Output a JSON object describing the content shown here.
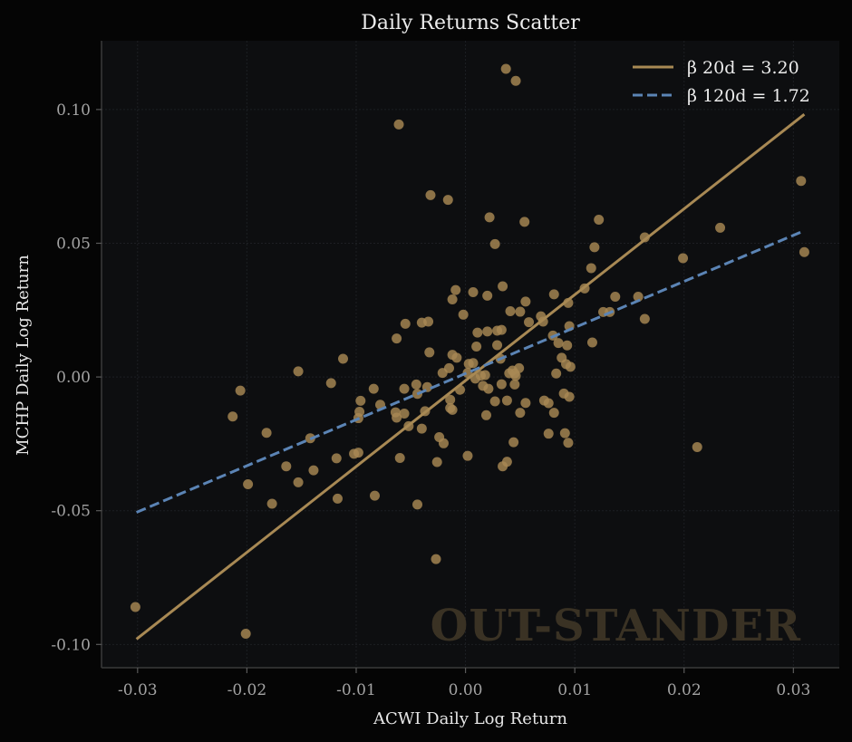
{
  "chart_data": {
    "type": "scatter",
    "title": "Daily Returns Scatter",
    "xlabel": "ACWI Daily Log Return",
    "ylabel": "MCHP Daily Log Return",
    "xlim": [
      -0.0333,
      0.0342
    ],
    "ylim": [
      -0.1087,
      0.1257
    ],
    "xticks": [
      -0.03,
      -0.02,
      -0.01,
      0.0,
      0.01,
      0.02,
      0.03
    ],
    "xtick_labels": [
      "-0.03",
      "-0.02",
      "-0.01",
      "0.00",
      "0.01",
      "0.02",
      "0.03"
    ],
    "yticks": [
      -0.1,
      -0.05,
      0.0,
      0.05,
      0.1
    ],
    "ytick_labels": [
      "-0.10",
      "-0.05",
      "0.00",
      "0.05",
      "0.10"
    ],
    "grid": true,
    "legend_position": "top-right",
    "watermark": "OUT-STANDER",
    "colors": {
      "background": "#050505",
      "plot_background": "#0d0e10",
      "points": "#a88954",
      "fit_20d": "#a88954",
      "fit_120d": "#5b84b5",
      "watermark": "#3a3224"
    },
    "series": [
      {
        "name": "points",
        "kind": "scatter",
        "points": [
          [
            0.0037,
            0.1152
          ],
          [
            0.0046,
            0.1107
          ],
          [
            -0.0061,
            0.0944
          ],
          [
            -0.0032,
            0.068
          ],
          [
            -0.0016,
            0.0662
          ],
          [
            0.0022,
            0.0597
          ],
          [
            0.0054,
            0.058
          ],
          [
            0.0122,
            0.0588
          ],
          [
            0.0027,
            0.0497
          ],
          [
            0.0118,
            0.0485
          ],
          [
            0.0164,
            0.0522
          ],
          [
            0.0233,
            0.0558
          ],
          [
            0.0199,
            0.0444
          ],
          [
            0.0307,
            0.0733
          ],
          [
            0.031,
            0.0467
          ],
          [
            0.0115,
            0.0407
          ],
          [
            0.0109,
            0.0331
          ],
          [
            0.0034,
            0.0339
          ],
          [
            -0.0009,
            0.0325
          ],
          [
            0.0007,
            0.0317
          ],
          [
            -0.0012,
            0.029
          ],
          [
            0.002,
            0.0304
          ],
          [
            0.0055,
            0.0282
          ],
          [
            0.0081,
            0.0309
          ],
          [
            0.0094,
            0.0277
          ],
          [
            0.0137,
            0.03
          ],
          [
            0.0158,
            0.03
          ],
          [
            0.0126,
            0.0243
          ],
          [
            0.0132,
            0.0243
          ],
          [
            0.0164,
            0.0217
          ],
          [
            0.0041,
            0.0246
          ],
          [
            0.005,
            0.0244
          ],
          [
            0.0069,
            0.0227
          ],
          [
            0.0071,
            0.0207
          ],
          [
            0.0058,
            0.0205
          ],
          [
            0.0095,
            0.019
          ],
          [
            -0.0002,
            0.0233
          ],
          [
            -0.004,
            0.0203
          ],
          [
            -0.0034,
            0.0207
          ],
          [
            -0.0055,
            0.0199
          ],
          [
            -0.0063,
            0.0144
          ],
          [
            0.0011,
            0.0166
          ],
          [
            0.002,
            0.017
          ],
          [
            0.0029,
            0.0173
          ],
          [
            0.0033,
            0.0176
          ],
          [
            0.008,
            0.0155
          ],
          [
            0.0085,
            0.0127
          ],
          [
            0.0093,
            0.0118
          ],
          [
            0.0116,
            0.0129
          ],
          [
            0.001,
            0.0114
          ],
          [
            0.0029,
            0.0119
          ],
          [
            -0.0033,
            0.0092
          ],
          [
            -0.0012,
            0.0083
          ],
          [
            -0.0008,
            0.0072
          ],
          [
            0.0088,
            0.0072
          ],
          [
            0.0092,
            0.0048
          ],
          [
            0.0096,
            0.0038
          ],
          [
            0.0003,
            0.0049
          ],
          [
            0.0007,
            0.0052
          ],
          [
            0.0032,
            0.0068
          ],
          [
            0.0014,
            0.0005
          ],
          [
            0.0018,
            0.0007
          ],
          [
            0.004,
            0.0014
          ],
          [
            0.0043,
            0.0024
          ],
          [
            0.0049,
            0.0033
          ],
          [
            0.0045,
            0.0013
          ],
          [
            0.0046,
            0.0004
          ],
          [
            0.0083,
            0.0013
          ],
          [
            -0.0015,
            0.0033
          ],
          [
            -0.0021,
            0.0015
          ],
          [
            0.0002,
            0.0015
          ],
          [
            0.0009,
            -0.0006
          ],
          [
            -0.0153,
            0.0021
          ],
          [
            -0.0112,
            0.0068
          ],
          [
            -0.0123,
            -0.0023
          ],
          [
            -0.0084,
            -0.0044
          ],
          [
            -0.0056,
            -0.0044
          ],
          [
            -0.0045,
            -0.0028
          ],
          [
            -0.0035,
            -0.0038
          ],
          [
            -0.0044,
            -0.0063
          ],
          [
            -0.0014,
            -0.0085
          ],
          [
            -0.0005,
            -0.0048
          ],
          [
            0.0016,
            -0.0033
          ],
          [
            0.0021,
            -0.0044
          ],
          [
            0.0027,
            -0.0091
          ],
          [
            0.0033,
            -0.0027
          ],
          [
            0.0038,
            -0.0088
          ],
          [
            0.0045,
            -0.0028
          ],
          [
            0.0055,
            -0.0097
          ],
          [
            0.0076,
            -0.0098
          ],
          [
            0.009,
            -0.0062
          ],
          [
            0.0095,
            -0.0074
          ],
          [
            0.0072,
            -0.0088
          ],
          [
            0.0081,
            -0.0134
          ],
          [
            -0.0096,
            -0.0089
          ],
          [
            -0.0078,
            -0.0104
          ],
          [
            -0.0064,
            -0.0132
          ],
          [
            -0.0063,
            -0.0152
          ],
          [
            -0.0056,
            -0.0137
          ],
          [
            -0.0052,
            -0.0184
          ],
          [
            -0.0037,
            -0.0128
          ],
          [
            -0.0014,
            -0.0116
          ],
          [
            -0.0012,
            -0.0123
          ],
          [
            0.0019,
            -0.0143
          ],
          [
            0.005,
            -0.0134
          ],
          [
            -0.0098,
            -0.0154
          ],
          [
            -0.0097,
            -0.013
          ],
          [
            -0.0213,
            -0.0148
          ],
          [
            -0.0206,
            -0.0051
          ],
          [
            -0.0182,
            -0.0209
          ],
          [
            -0.0142,
            -0.0229
          ],
          [
            -0.0102,
            -0.0287
          ],
          [
            -0.0098,
            -0.0283
          ],
          [
            -0.0118,
            -0.0304
          ],
          [
            -0.004,
            -0.0193
          ],
          [
            -0.0024,
            -0.0225
          ],
          [
            -0.002,
            -0.0248
          ],
          [
            -0.006,
            -0.0303
          ],
          [
            -0.0026,
            -0.0318
          ],
          [
            0.0002,
            -0.0295
          ],
          [
            0.0034,
            -0.0334
          ],
          [
            0.0038,
            -0.0317
          ],
          [
            0.0044,
            -0.0244
          ],
          [
            0.0076,
            -0.0212
          ],
          [
            0.0091,
            -0.021
          ],
          [
            0.0094,
            -0.0246
          ],
          [
            -0.0164,
            -0.0334
          ],
          [
            -0.0139,
            -0.0349
          ],
          [
            -0.0153,
            -0.0394
          ],
          [
            -0.0199,
            -0.0401
          ],
          [
            -0.0117,
            -0.0455
          ],
          [
            -0.0083,
            -0.0444
          ],
          [
            -0.0177,
            -0.0474
          ],
          [
            -0.0044,
            -0.0477
          ],
          [
            -0.0027,
            -0.0681
          ],
          [
            0.0212,
            -0.0262
          ],
          [
            -0.0302,
            -0.086
          ],
          [
            -0.0201,
            -0.096
          ]
        ]
      },
      {
        "name": "β 20d = 3.20",
        "kind": "line",
        "style": "solid",
        "x": [
          -0.0301,
          0.031
        ],
        "y": [
          -0.098,
          0.0982
        ]
      },
      {
        "name": "β 120d = 1.72",
        "kind": "line",
        "style": "dashed",
        "x": [
          -0.0301,
          0.031
        ],
        "y": [
          -0.0506,
          0.0547
        ]
      }
    ]
  }
}
